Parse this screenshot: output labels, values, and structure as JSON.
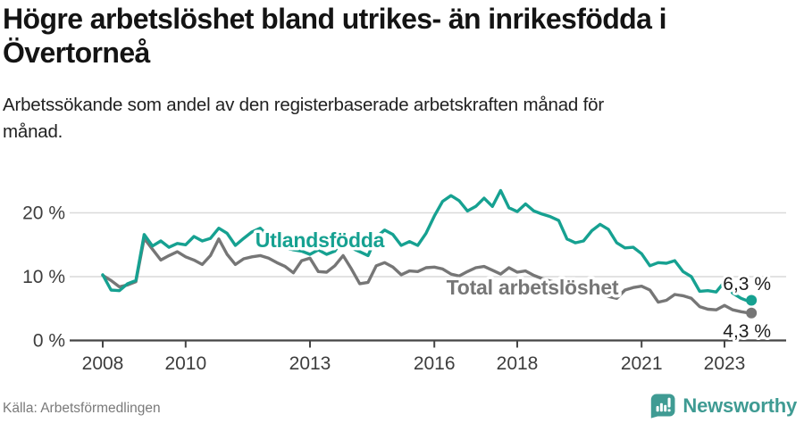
{
  "header": {
    "title": "Högre arbetslöshet bland utrikes- än inrikesfödda i Övertorneå",
    "subtitle": "Arbetssökande som andel av den registerbaserade arbetskraften månad för månad."
  },
  "footer": {
    "source": "Källa: Arbetsförmedlingen",
    "brand": "Newsworthy"
  },
  "colors": {
    "accent_teal": "#16a191",
    "total_gray": "#767676",
    "brand_teal": "#3f9b93",
    "axis": "#454545",
    "grid": "#d9d9d9",
    "end_label": "#1d1d1d"
  },
  "chart_data": {
    "type": "line",
    "unit": "%",
    "grid": true,
    "x_start": 2008,
    "x_step": 0.2,
    "x_last": 2023.65,
    "xlim": [
      2007.2,
      2024.5
    ],
    "ylim": [
      0,
      26
    ],
    "x_ticks": [
      2008,
      2010,
      2013,
      2016,
      2018,
      2021,
      2023
    ],
    "x_tick_labels": [
      "2008",
      "2010",
      "2013",
      "2016",
      "2018",
      "2021",
      "2023"
    ],
    "y_ticks": [
      {
        "value": 0,
        "label": "0 %"
      },
      {
        "value": 10,
        "label": "10 %"
      },
      {
        "value": 20,
        "label": "20 %"
      }
    ],
    "series": [
      {
        "name": "Utlandsfödda",
        "color": "#16a191",
        "end_value": 6.3,
        "end_label": "6,3 %",
        "values": [
          10.3,
          7.9,
          7.8,
          8.9,
          9.4,
          16.6,
          14.8,
          15.6,
          14.6,
          15.2,
          15.0,
          16.3,
          15.6,
          16.0,
          17.6,
          16.8,
          14.9,
          16.0,
          17.0,
          17.6,
          16.3,
          15.2,
          14.6,
          14.2,
          14.0,
          13.5,
          14.2,
          13.5,
          14.0,
          16.0,
          14.5,
          13.9,
          13.3,
          16.2,
          17.3,
          16.6,
          14.9,
          15.5,
          14.9,
          16.8,
          19.5,
          21.8,
          22.7,
          21.9,
          20.3,
          21.0,
          22.3,
          21.0,
          23.5,
          20.8,
          20.2,
          21.4,
          20.3,
          19.8,
          19.4,
          18.8,
          15.9,
          15.3,
          15.6,
          17.2,
          18.2,
          17.4,
          15.3,
          14.5,
          14.6,
          13.6,
          11.7,
          12.2,
          12.1,
          12.5,
          10.8,
          10.0,
          7.7,
          7.8,
          7.6,
          9.2,
          7.4,
          6.6,
          6.1,
          6.3
        ]
      },
      {
        "name": "Total arbetslöshet",
        "color": "#767676",
        "end_value": 4.3,
        "end_label": "4,3 %",
        "values": [
          10.2,
          9.4,
          8.4,
          8.7,
          9.2,
          16.0,
          14.3,
          12.6,
          13.3,
          13.9,
          13.1,
          12.6,
          11.9,
          13.3,
          15.9,
          13.5,
          11.9,
          12.8,
          13.1,
          13.3,
          12.9,
          12.2,
          11.6,
          10.6,
          12.5,
          12.9,
          10.8,
          10.7,
          11.7,
          13.3,
          11.2,
          8.9,
          9.1,
          11.7,
          12.2,
          11.5,
          10.3,
          10.9,
          10.8,
          11.4,
          11.5,
          11.2,
          10.4,
          10.1,
          10.8,
          11.4,
          11.6,
          11.0,
          10.4,
          11.4,
          10.7,
          10.9,
          10.2,
          9.7,
          9.3,
          9.0,
          8.6,
          8.2,
          7.9,
          7.5,
          7.2,
          6.9,
          6.6,
          7.9,
          8.3,
          8.5,
          7.9,
          6.0,
          6.3,
          7.2,
          7.0,
          6.6,
          5.3,
          4.9,
          4.8,
          5.5,
          4.8,
          4.5,
          4.3,
          4.3
        ]
      }
    ]
  }
}
